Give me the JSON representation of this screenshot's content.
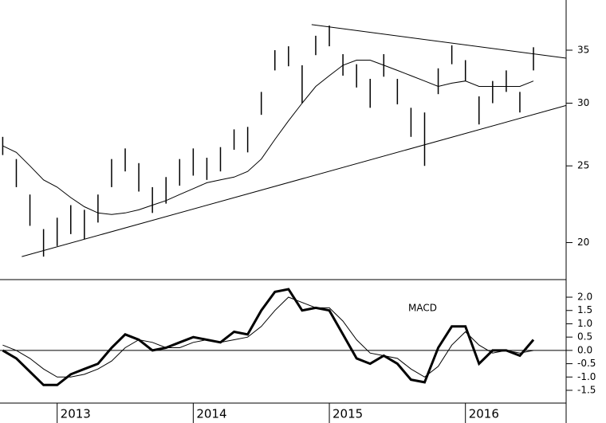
{
  "chart_data": [
    {
      "type": "range-bar",
      "log_scale": true,
      "color": "#000000",
      "x": [
        2012.6,
        2012.7,
        2012.8,
        2012.9,
        2013.0,
        2013.1,
        2013.2,
        2013.3,
        2013.4,
        2013.5,
        2013.6,
        2013.7,
        2013.8,
        2013.9,
        2014.0,
        2014.1,
        2014.2,
        2014.3,
        2014.4,
        2014.5,
        2014.6,
        2014.7,
        2014.8,
        2014.9,
        2015.0,
        2015.1,
        2015.2,
        2015.3,
        2015.4,
        2015.5,
        2015.6,
        2015.7,
        2015.8,
        2015.9,
        2016.0,
        2016.1,
        2016.2,
        2016.3,
        2016.4,
        2016.5
      ],
      "high": [
        27.2,
        25.5,
        23,
        20.8,
        21.5,
        22.3,
        22,
        23,
        25.5,
        26.3,
        25.2,
        23.5,
        24.2,
        25.5,
        26.3,
        25.6,
        26.4,
        27.8,
        28,
        31,
        35,
        35.4,
        33.5,
        36.5,
        37.6,
        34.6,
        33.6,
        32.2,
        34.6,
        32.2,
        29.6,
        29.2,
        33.2,
        35.5,
        34,
        30.6,
        32,
        33,
        31,
        35.3
      ],
      "low": [
        25.8,
        23.5,
        21,
        19.2,
        19.8,
        20.5,
        20.2,
        21.2,
        23.5,
        24.6,
        23.2,
        21.8,
        22.4,
        23.6,
        24.3,
        24,
        24.6,
        26.2,
        26,
        29,
        33,
        33.4,
        30,
        34.5,
        35.4,
        32.5,
        31.4,
        29.6,
        32.4,
        29.9,
        27.2,
        25,
        30.8,
        33.6,
        32,
        28.2,
        30,
        31,
        29.2,
        33
      ],
      "ma": [
        26.5,
        26,
        25,
        24,
        23.5,
        22.8,
        22.2,
        21.8,
        21.7,
        21.8,
        22,
        22.3,
        22.6,
        23,
        23.4,
        23.8,
        24,
        24.2,
        24.6,
        25.5,
        27,
        28.5,
        30,
        31.5,
        32.5,
        33.5,
        34,
        34,
        33.5,
        33,
        32.5,
        32,
        31.5,
        31.8,
        32,
        31.5,
        31.5,
        31.5,
        31.5,
        32
      ],
      "trendlines": [
        {
          "x": [
            2014.87,
            2016.74
          ],
          "y": [
            37.7,
            34.2
          ]
        },
        {
          "x": [
            2012.74,
            2016.74
          ],
          "y": [
            19.2,
            29.8
          ]
        }
      ],
      "xlim": [
        2012.58,
        2016.74
      ],
      "ylim": [
        18,
        40.5
      ],
      "yticks": [
        20,
        25,
        30,
        35
      ]
    },
    {
      "type": "line",
      "annotation": "MACD",
      "x": [
        2012.6,
        2012.7,
        2012.8,
        2012.9,
        2013.0,
        2013.1,
        2013.2,
        2013.3,
        2013.4,
        2013.5,
        2013.6,
        2013.7,
        2013.8,
        2013.9,
        2014.0,
        2014.1,
        2014.2,
        2014.3,
        2014.4,
        2014.5,
        2014.6,
        2014.7,
        2014.8,
        2014.9,
        2015.0,
        2015.1,
        2015.2,
        2015.3,
        2015.4,
        2015.5,
        2015.6,
        2015.7,
        2015.8,
        2015.9,
        2016.0,
        2016.1,
        2016.2,
        2016.3,
        2016.4,
        2016.5
      ],
      "series": [
        {
          "color": "#000000",
          "values": [
            0,
            -0.3,
            -0.8,
            -1.3,
            -1.3,
            -0.9,
            -0.7,
            -0.5,
            0.1,
            0.6,
            0.4,
            0,
            0.1,
            0.3,
            0.5,
            0.4,
            0.3,
            0.7,
            0.6,
            1.5,
            2.2,
            2.3,
            1.5,
            1.6,
            1.5,
            0.6,
            -0.3,
            -0.5,
            -0.2,
            -0.5,
            -1.1,
            -1.2,
            0.1,
            0.9,
            0.9,
            -0.5,
            0,
            0,
            -0.2,
            0.4
          ]
        },
        {
          "color": "#000000",
          "values": [
            0.2,
            0,
            -0.3,
            -0.7,
            -1.0,
            -1.0,
            -0.9,
            -0.7,
            -0.4,
            0.1,
            0.4,
            0.3,
            0.1,
            0.1,
            0.3,
            0.4,
            0.3,
            0.4,
            0.5,
            0.9,
            1.5,
            2.0,
            1.8,
            1.6,
            1.6,
            1.1,
            0.4,
            -0.1,
            -0.2,
            -0.3,
            -0.7,
            -1.0,
            -0.6,
            0.2,
            0.7,
            0.2,
            -0.1,
            0,
            -0.1,
            0
          ]
        }
      ],
      "xlim": [
        2012.58,
        2016.74
      ],
      "ylim": [
        -1.95,
        2.63
      ],
      "yticks": [
        {
          "value": 2,
          "label": "2.0"
        },
        1.5,
        {
          "value": 1,
          "label": "1.0"
        },
        0.5,
        {
          "value": 0,
          "label": "0.0"
        },
        -0.5,
        {
          "value": -1,
          "label": "-1.0"
        },
        -1.5
      ],
      "xticks": [
        2013,
        2014,
        2015,
        2016
      ]
    }
  ]
}
